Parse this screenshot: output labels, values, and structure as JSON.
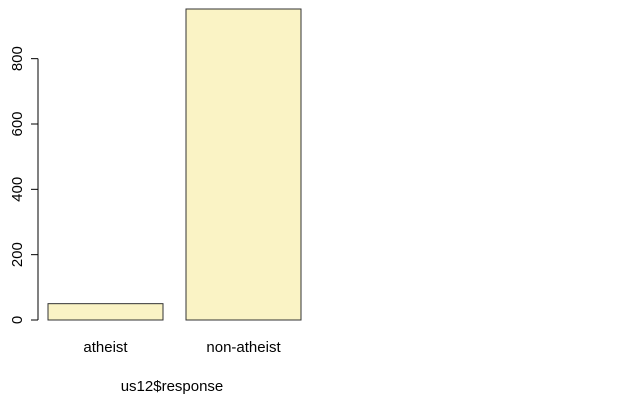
{
  "chart_data": {
    "type": "bar",
    "categories": [
      "atheist",
      "non-atheist"
    ],
    "values": [
      50,
      952
    ],
    "title": "",
    "xlabel": "us12$response",
    "ylabel": "",
    "ylim": [
      0,
      952
    ],
    "yticks": [
      0,
      200,
      400,
      600,
      800
    ],
    "grid": false,
    "bar_color": "#FAF3C5",
    "bar_stroke": "#333333"
  }
}
